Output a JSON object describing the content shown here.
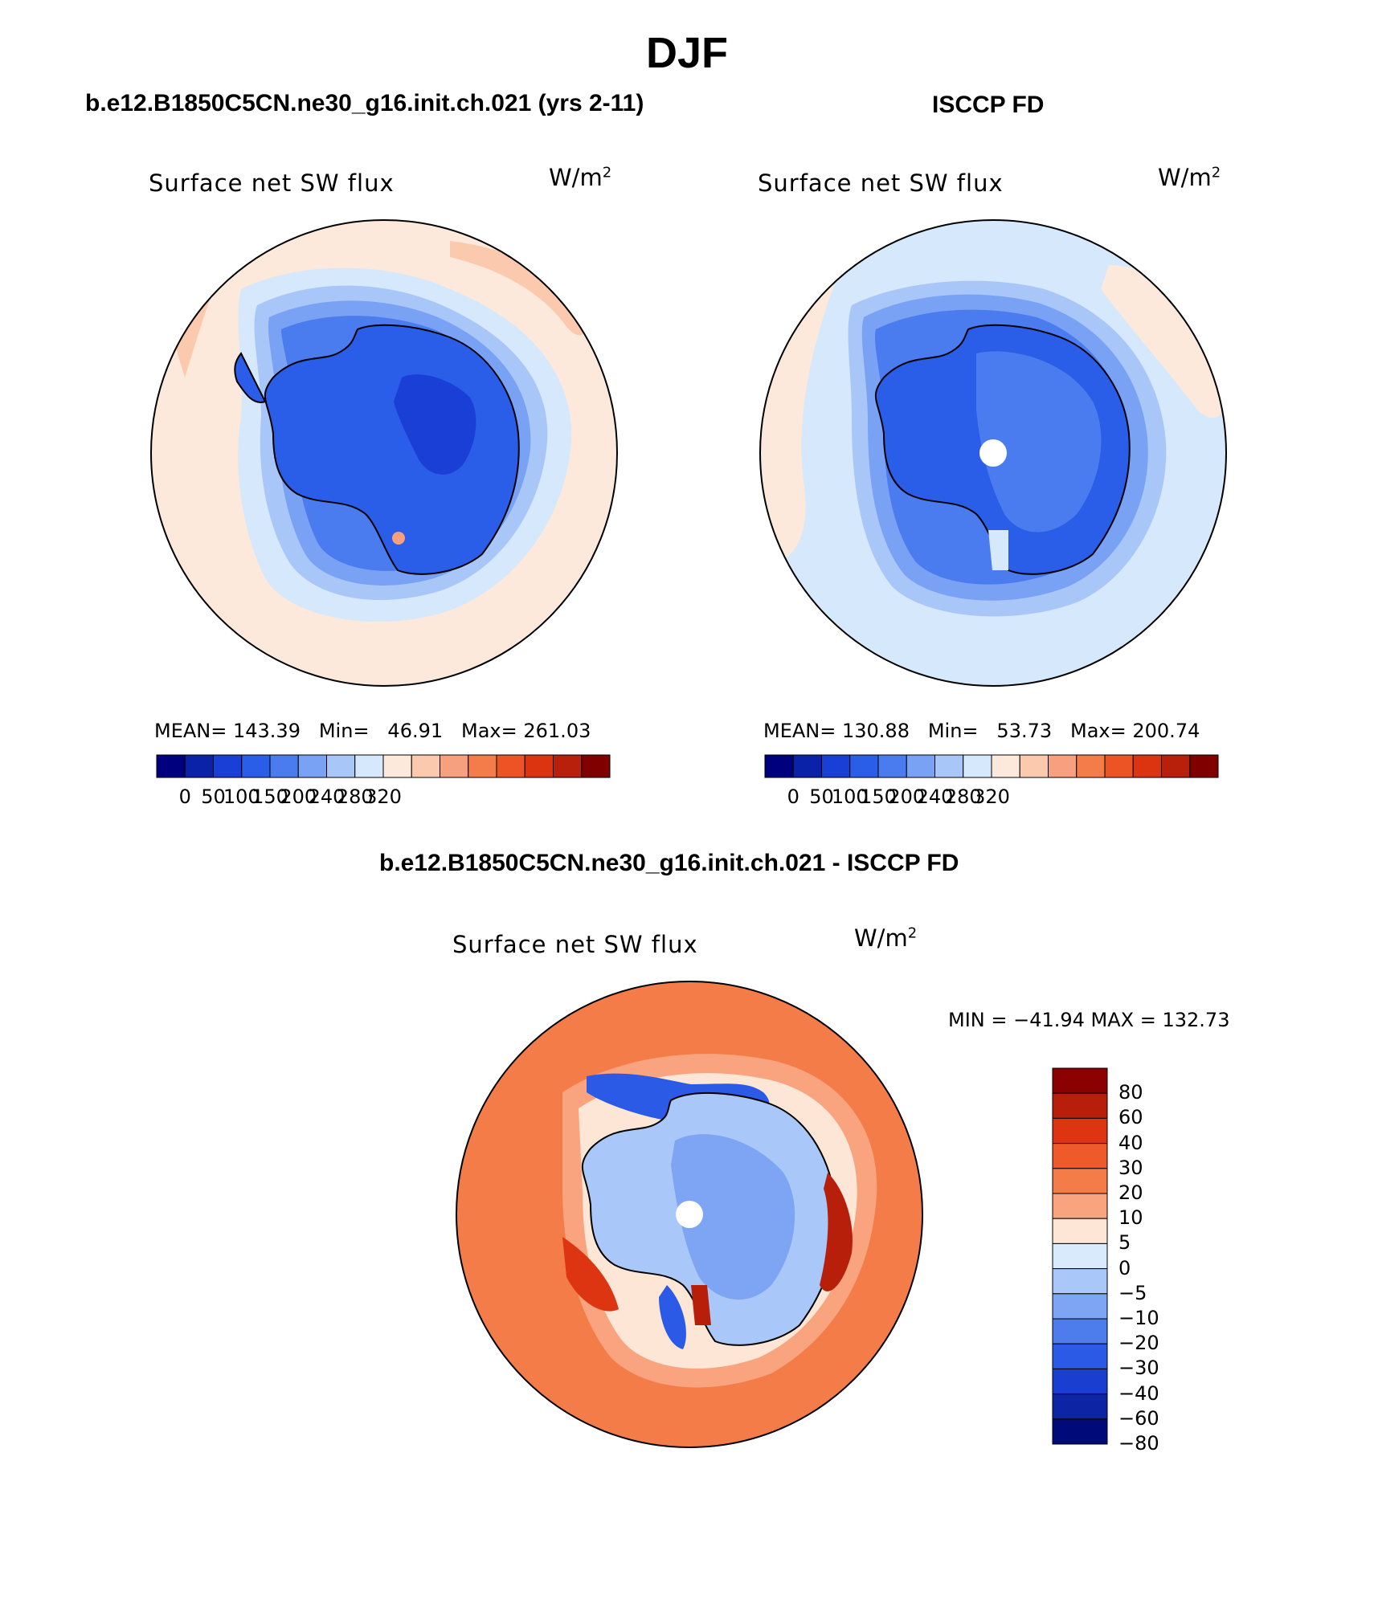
{
  "figure": {
    "season": "DJF",
    "panels": {
      "model": {
        "case_title": "b.e12.B1850C5CN.ne30_g16.init.ch.021 (yrs 2-11)",
        "variable": "Surface net SW flux",
        "units_base": "W/m",
        "units_exp": "2",
        "stats": "MEAN= 143.39   Min=   46.91   Max= 261.03"
      },
      "obs": {
        "case_title": "ISCCP FD",
        "variable": "Surface net SW flux",
        "units_base": "W/m",
        "units_exp": "2",
        "stats": "MEAN= 130.88   Min=   53.73   Max= 200.74"
      },
      "diff": {
        "case_title": "b.e12.B1850C5CN.ne30_g16.init.ch.021 - ISCCP FD",
        "variable": "Surface net SW flux",
        "units_base": "W/m",
        "units_exp": "2",
        "stats": "MIN = −41.94 MAX = 132.73"
      }
    }
  },
  "chart_data": [
    {
      "type": "heatmap",
      "title": "Surface net SW flux",
      "subtitle": "b.e12.B1850C5CN.ne30_g16.init.ch.021 (yrs 2-11)",
      "units": "W/m2",
      "projection": "south-polar-stereographic",
      "mean": 143.39,
      "min": 46.91,
      "max": 261.03,
      "colorbar_ticks": [
        "0",
        "50",
        "100",
        "150",
        "200",
        "240",
        "280",
        "320"
      ],
      "colors": [
        "#00007f",
        "#0a22a8",
        "#1a3fd6",
        "#2a5ee8",
        "#4a7cef",
        "#7aa2f4",
        "#a9c6f8",
        "#d6e8fb",
        "#fce9db",
        "#fbc9ad",
        "#f6a07e",
        "#f37c4a",
        "#ec5426",
        "#dc3410",
        "#b8200c",
        "#800000"
      ]
    },
    {
      "type": "heatmap",
      "title": "Surface net SW flux",
      "subtitle": "ISCCP FD",
      "units": "W/m2",
      "projection": "south-polar-stereographic",
      "mean": 130.88,
      "min": 53.73,
      "max": 200.74,
      "colorbar_ticks": [
        "0",
        "50",
        "100",
        "150",
        "200",
        "240",
        "280",
        "320"
      ],
      "colors": [
        "#00007f",
        "#0a22a8",
        "#1a3fd6",
        "#2a5ee8",
        "#4a7cef",
        "#7aa2f4",
        "#a9c6f8",
        "#d6e8fb",
        "#fce9db",
        "#fbc9ad",
        "#f6a07e",
        "#f37c4a",
        "#ec5426",
        "#dc3410",
        "#b8200c",
        "#800000"
      ]
    },
    {
      "type": "heatmap",
      "title": "Surface net SW flux",
      "subtitle": "b.e12.B1850C5CN.ne30_g16.init.ch.021 - ISCCP FD",
      "units": "W/m2",
      "projection": "south-polar-stereographic",
      "min": -41.94,
      "max": 132.73,
      "colorbar_ticks": [
        "80",
        "60",
        "40",
        "30",
        "20",
        "10",
        "5",
        "0",
        "−5",
        "−10",
        "−20",
        "−30",
        "−40",
        "−60",
        "−80"
      ],
      "colors": [
        "#8b0000",
        "#b81f0a",
        "#dd3512",
        "#ef5a2a",
        "#f47c48",
        "#f9a47e",
        "#fde6d6",
        "#d9eafc",
        "#a9c7f8",
        "#7ea5f3",
        "#4d7cec",
        "#2b5be6",
        "#1a3fd0",
        "#0d24a4",
        "#000b7a"
      ]
    }
  ]
}
